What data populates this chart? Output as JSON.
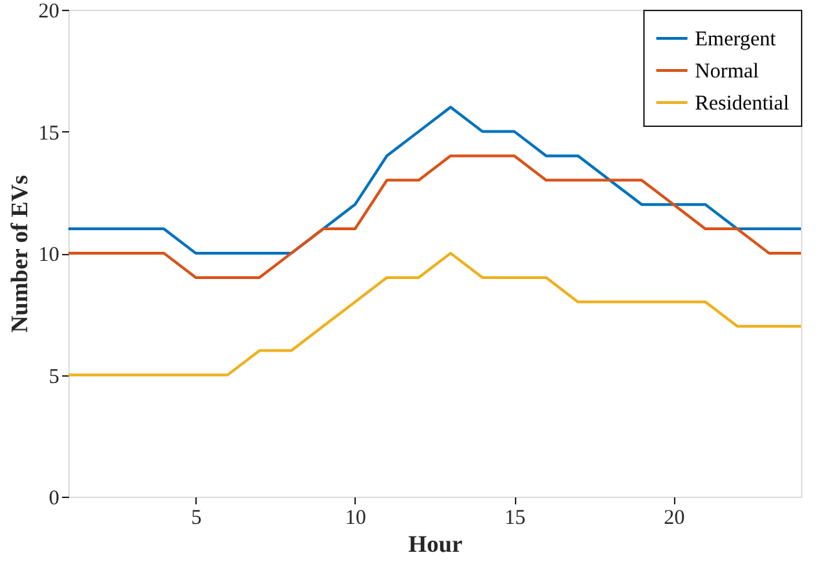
{
  "chart_data": {
    "type": "line",
    "xlabel": "Hour",
    "ylabel": "Number of EVs",
    "x": [
      1,
      2,
      3,
      4,
      5,
      6,
      7,
      8,
      9,
      10,
      11,
      12,
      13,
      14,
      15,
      16,
      17,
      18,
      19,
      20,
      21,
      22,
      23,
      24
    ],
    "series": [
      {
        "name": "Emergent",
        "color": "#0072bd",
        "values": [
          11,
          11,
          11,
          11,
          10,
          10,
          10,
          10,
          11,
          12,
          14,
          15,
          16,
          15,
          15,
          14,
          14,
          13,
          12,
          12,
          12,
          11,
          11,
          11
        ]
      },
      {
        "name": "Normal",
        "color": "#d95319",
        "values": [
          10,
          10,
          10,
          10,
          9,
          9,
          9,
          10,
          11,
          11,
          13,
          13,
          14,
          14,
          14,
          13,
          13,
          13,
          13,
          12,
          11,
          11,
          10,
          10
        ]
      },
      {
        "name": "Residential",
        "color": "#edb120",
        "values": [
          5,
          5,
          5,
          5,
          5,
          5,
          6,
          6,
          7,
          8,
          9,
          9,
          10,
          9,
          9,
          9,
          8,
          8,
          8,
          8,
          8,
          7,
          7,
          7
        ]
      }
    ],
    "xlim": [
      1,
      24
    ],
    "xticks": [
      5,
      10,
      15,
      20
    ],
    "ylim": [
      0,
      20
    ],
    "yticks": [
      0,
      5,
      10,
      15,
      20
    ],
    "grid": false,
    "legend": "top right",
    "marker": "none",
    "line_style": "solid"
  }
}
